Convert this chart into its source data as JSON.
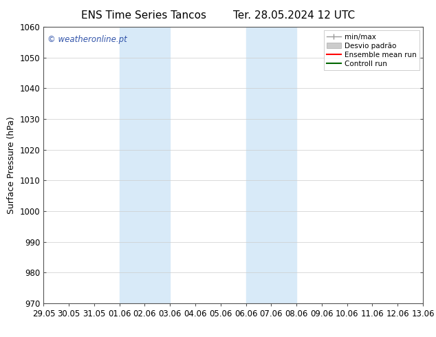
{
  "title_left": "ENS Time Series Tancos",
  "title_right": "Ter. 28.05.2024 12 UTC",
  "ylabel": "Surface Pressure (hPa)",
  "ylim": [
    970,
    1060
  ],
  "yticks": [
    970,
    980,
    990,
    1000,
    1010,
    1020,
    1030,
    1040,
    1050,
    1060
  ],
  "xtick_labels": [
    "29.05",
    "30.05",
    "31.05",
    "01.06",
    "02.06",
    "03.06",
    "04.06",
    "05.06",
    "06.06",
    "07.06",
    "08.06",
    "09.06",
    "10.06",
    "11.06",
    "12.06",
    "13.06"
  ],
  "xtick_positions": [
    0,
    1,
    2,
    3,
    4,
    5,
    6,
    7,
    8,
    9,
    10,
    11,
    12,
    13,
    14,
    15
  ],
  "shaded_regions": [
    {
      "xmin": 3,
      "xmax": 5,
      "color": "#d8eaf8"
    },
    {
      "xmin": 8,
      "xmax": 10,
      "color": "#d8eaf8"
    }
  ],
  "watermark": "© weatheronline.pt",
  "watermark_color": "#3355aa",
  "background_color": "#ffffff",
  "grid_color": "#cccccc",
  "title_fontsize": 11,
  "label_fontsize": 9,
  "tick_fontsize": 8.5,
  "legend_fontsize": 7.5
}
